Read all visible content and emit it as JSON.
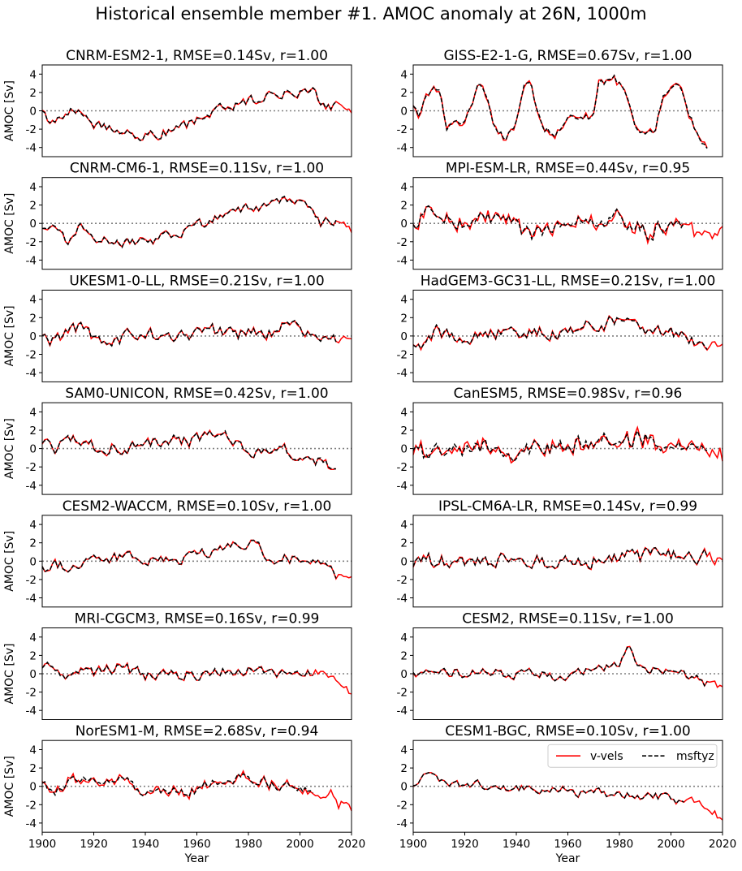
{
  "figure": {
    "title": "Historical ensemble member #1. AMOC anomaly at 26N, 1000m"
  },
  "legend": {
    "entries": [
      {
        "label": "v-vels",
        "color": "#ff0000",
        "dash": "solid"
      },
      {
        "label": "msftyz",
        "color": "#000000",
        "dash": "dashed"
      }
    ],
    "placement": "top-right of last panel"
  },
  "chart_data": {
    "type": "line",
    "layout": {
      "rows": 7,
      "cols": 2
    },
    "shared": {
      "xlim": [
        1900,
        2020
      ],
      "ylim": [
        -5,
        5
      ],
      "xticks": [
        1900,
        1920,
        1940,
        1960,
        1980,
        2000,
        2020
      ],
      "yticks": [
        -4,
        -2,
        0,
        2,
        4
      ],
      "xlabel": "Year",
      "ylabel": "AMOC [Sv]",
      "zero_line": {
        "y": 0,
        "style": "dotted",
        "color": "#808080"
      }
    },
    "panels": [
      {
        "title": "CNRM-ESM2-1, RMSE=0.14Sv,   r=1.00",
        "x_end": 2014,
        "red_extra": 6,
        "noise": 0.55,
        "diverge": 0.12,
        "anchors": [
          [
            1900,
            -0.3
          ],
          [
            1905,
            -1.4
          ],
          [
            1912,
            0.3
          ],
          [
            1920,
            -1.3
          ],
          [
            1930,
            -2.2
          ],
          [
            1940,
            -2.7
          ],
          [
            1950,
            -2.3
          ],
          [
            1960,
            -1.2
          ],
          [
            1970,
            0.4
          ],
          [
            1980,
            1.0
          ],
          [
            1990,
            1.8
          ],
          [
            2000,
            2.0
          ],
          [
            2005,
            2.2
          ],
          [
            2010,
            0.6
          ],
          [
            2014,
            0.6
          ],
          [
            2020,
            0.2
          ]
        ]
      },
      {
        "title": "GISS-E2-1-G, RMSE=0.67Sv,   r=1.00",
        "x_end": 2014,
        "red_extra": 0,
        "noise": 0.45,
        "diverge": 0.25,
        "anchors": [
          [
            1900,
            0.2
          ],
          [
            1902,
            -0.8
          ],
          [
            1905,
            1.8
          ],
          [
            1910,
            2.4
          ],
          [
            1913,
            -1.8
          ],
          [
            1920,
            -1.6
          ],
          [
            1925,
            2.8
          ],
          [
            1928,
            2.0
          ],
          [
            1932,
            -2.2
          ],
          [
            1936,
            -3.0
          ],
          [
            1940,
            -1.0
          ],
          [
            1943,
            3.0
          ],
          [
            1946,
            2.5
          ],
          [
            1950,
            -2.0
          ],
          [
            1955,
            -2.4
          ],
          [
            1960,
            -1.0
          ],
          [
            1965,
            -0.5
          ],
          [
            1970,
            -0.6
          ],
          [
            1972,
            3.0
          ],
          [
            1978,
            3.5
          ],
          [
            1982,
            2.4
          ],
          [
            1986,
            -2.0
          ],
          [
            1990,
            -2.2
          ],
          [
            1994,
            -2.0
          ],
          [
            1997,
            2.0
          ],
          [
            2003,
            2.6
          ],
          [
            2007,
            -0.3
          ],
          [
            2011,
            -3.0
          ],
          [
            2014,
            -4.3
          ]
        ]
      },
      {
        "title": "CNRM-CM6-1, RMSE=0.11Sv,   r=1.00",
        "x_end": 2014,
        "red_extra": 6,
        "noise": 0.55,
        "diverge": 0.1,
        "anchors": [
          [
            1900,
            -0.3
          ],
          [
            1905,
            -0.8
          ],
          [
            1910,
            -2.2
          ],
          [
            1914,
            -0.4
          ],
          [
            1920,
            -1.4
          ],
          [
            1930,
            -2.3
          ],
          [
            1940,
            -1.9
          ],
          [
            1950,
            -1.2
          ],
          [
            1960,
            -0.3
          ],
          [
            1970,
            0.6
          ],
          [
            1980,
            1.6
          ],
          [
            1990,
            2.3
          ],
          [
            2000,
            2.8
          ],
          [
            2005,
            2.0
          ],
          [
            2008,
            0.3
          ],
          [
            2014,
            0.0
          ],
          [
            2020,
            -0.7
          ]
        ]
      },
      {
        "title": "MPI-ESM-LR, RMSE=0.44Sv,   r=0.95",
        "x_end": 2005,
        "red_extra": 15,
        "noise": 0.9,
        "diverge": 0.45,
        "anchors": [
          [
            1900,
            0.0
          ],
          [
            1905,
            1.2
          ],
          [
            1910,
            1.5
          ],
          [
            1915,
            0.0
          ],
          [
            1920,
            -0.2
          ],
          [
            1930,
            0.3
          ],
          [
            1940,
            -0.4
          ],
          [
            1945,
            -1.0
          ],
          [
            1950,
            -1.4
          ],
          [
            1960,
            1.0
          ],
          [
            1965,
            0.2
          ],
          [
            1970,
            -0.4
          ],
          [
            1980,
            0.6
          ],
          [
            1985,
            -0.3
          ],
          [
            1990,
            -0.9
          ],
          [
            2000,
            -0.4
          ],
          [
            2005,
            -0.5
          ],
          [
            2010,
            -0.8
          ],
          [
            2020,
            -0.9
          ]
        ]
      },
      {
        "title": "UKESM1-0-LL, RMSE=0.21Sv,   r=1.00",
        "x_end": 2014,
        "red_extra": 6,
        "noise": 0.75,
        "diverge": 0.15,
        "anchors": [
          [
            1900,
            0.2
          ],
          [
            1905,
            -0.4
          ],
          [
            1910,
            1.0
          ],
          [
            1915,
            0.8
          ],
          [
            1920,
            0.0
          ],
          [
            1930,
            -0.3
          ],
          [
            1940,
            0.2
          ],
          [
            1950,
            -0.4
          ],
          [
            1960,
            0.3
          ],
          [
            1965,
            1.0
          ],
          [
            1970,
            0.2
          ],
          [
            1980,
            0.1
          ],
          [
            1985,
            0.3
          ],
          [
            1990,
            0.8
          ],
          [
            1995,
            1.5
          ],
          [
            2000,
            1.0
          ],
          [
            2005,
            0.0
          ],
          [
            2014,
            -0.6
          ],
          [
            2020,
            0.0
          ]
        ]
      },
      {
        "title": "HadGEM3-GC31-LL, RMSE=0.21Sv,   r=1.00",
        "x_end": 2014,
        "red_extra": 6,
        "noise": 0.75,
        "diverge": 0.15,
        "anchors": [
          [
            1900,
            -1.6
          ],
          [
            1905,
            -0.8
          ],
          [
            1910,
            0.6
          ],
          [
            1915,
            0.0
          ],
          [
            1920,
            -0.2
          ],
          [
            1930,
            0.2
          ],
          [
            1940,
            0.1
          ],
          [
            1950,
            0.4
          ],
          [
            1960,
            0.3
          ],
          [
            1970,
            1.2
          ],
          [
            1980,
            1.6
          ],
          [
            1985,
            1.0
          ],
          [
            1990,
            0.4
          ],
          [
            2000,
            0.3
          ],
          [
            2005,
            -0.2
          ],
          [
            2010,
            -0.7
          ],
          [
            2014,
            -0.9
          ],
          [
            2020,
            -1.3
          ]
        ]
      },
      {
        "title": "SAM0-UNICON, RMSE=0.42Sv,   r=1.00",
        "x_end": 2014,
        "red_extra": 0,
        "noise": 0.75,
        "diverge": 0.15,
        "anchors": [
          [
            1900,
            0.2
          ],
          [
            1905,
            -0.3
          ],
          [
            1910,
            1.0
          ],
          [
            1915,
            0.3
          ],
          [
            1920,
            0.0
          ],
          [
            1930,
            0.1
          ],
          [
            1940,
            0.6
          ],
          [
            1950,
            0.9
          ],
          [
            1960,
            1.0
          ],
          [
            1970,
            1.5
          ],
          [
            1975,
            1.0
          ],
          [
            1980,
            0.1
          ],
          [
            1985,
            -0.3
          ],
          [
            1990,
            0.3
          ],
          [
            1995,
            -0.3
          ],
          [
            2000,
            -0.8
          ],
          [
            2005,
            -1.1
          ],
          [
            2010,
            -1.3
          ],
          [
            2014,
            -1.4
          ]
        ]
      },
      {
        "title": "CanESM5, RMSE=0.98Sv,   r=0.96",
        "x_end": 2014,
        "red_extra": 6,
        "noise": 0.9,
        "diverge": 0.5,
        "anchors": [
          [
            1900,
            0.0
          ],
          [
            1905,
            -0.9
          ],
          [
            1910,
            -0.3
          ],
          [
            1920,
            -0.2
          ],
          [
            1930,
            0.2
          ],
          [
            1940,
            -0.4
          ],
          [
            1950,
            0.0
          ],
          [
            1960,
            0.4
          ],
          [
            1970,
            0.8
          ],
          [
            1975,
            1.0
          ],
          [
            1980,
            1.4
          ],
          [
            1985,
            0.9
          ],
          [
            1990,
            1.3
          ],
          [
            1995,
            0.6
          ],
          [
            2000,
            0.2
          ],
          [
            2005,
            -0.2
          ],
          [
            2010,
            -0.3
          ],
          [
            2014,
            -0.2
          ],
          [
            2020,
            -0.5
          ]
        ]
      },
      {
        "title": "CESM2-WACCM, RMSE=0.10Sv,   r=1.00",
        "x_end": 2014,
        "red_extra": 6,
        "noise": 0.6,
        "diverge": 0.1,
        "anchors": [
          [
            1900,
            -1.0
          ],
          [
            1905,
            -0.5
          ],
          [
            1910,
            -0.6
          ],
          [
            1920,
            0.1
          ],
          [
            1930,
            0.4
          ],
          [
            1940,
            0.2
          ],
          [
            1950,
            0.0
          ],
          [
            1960,
            0.6
          ],
          [
            1970,
            1.3
          ],
          [
            1975,
            2.3
          ],
          [
            1980,
            2.0
          ],
          [
            1985,
            1.2
          ],
          [
            1990,
            -0.3
          ],
          [
            1995,
            0.6
          ],
          [
            2000,
            0.1
          ],
          [
            2005,
            0.0
          ],
          [
            2010,
            -0.2
          ],
          [
            2014,
            -1.5
          ],
          [
            2020,
            -1.5
          ]
        ]
      },
      {
        "title": "IPSL-CM6A-LR, RMSE=0.14Sv,   r=0.99",
        "x_end": 2014,
        "red_extra": 6,
        "noise": 0.85,
        "diverge": 0.12,
        "anchors": [
          [
            1900,
            0.0
          ],
          [
            1910,
            0.2
          ],
          [
            1920,
            -0.5
          ],
          [
            1930,
            0.2
          ],
          [
            1940,
            -0.3
          ],
          [
            1950,
            -0.1
          ],
          [
            1960,
            0.0
          ],
          [
            1970,
            0.1
          ],
          [
            1980,
            0.4
          ],
          [
            1990,
            0.6
          ],
          [
            2000,
            0.8
          ],
          [
            2005,
            1.0
          ],
          [
            2010,
            0.6
          ],
          [
            2014,
            0.4
          ],
          [
            2020,
            0.0
          ]
        ]
      },
      {
        "title": "MRI-CGCM3, RMSE=0.16Sv,   r=0.99",
        "x_end": 2005,
        "red_extra": 15,
        "noise": 0.6,
        "diverge": 0.14,
        "anchors": [
          [
            1900,
            1.0
          ],
          [
            1905,
            0.8
          ],
          [
            1910,
            -0.2
          ],
          [
            1920,
            0.2
          ],
          [
            1930,
            0.5
          ],
          [
            1940,
            -0.1
          ],
          [
            1950,
            0.0
          ],
          [
            1960,
            -0.3
          ],
          [
            1970,
            0.4
          ],
          [
            1980,
            0.4
          ],
          [
            1990,
            0.0
          ],
          [
            2000,
            0.2
          ],
          [
            2005,
            0.0
          ],
          [
            2010,
            -0.5
          ],
          [
            2015,
            -0.6
          ],
          [
            2020,
            -2.0
          ]
        ]
      },
      {
        "title": "CESM2, RMSE=0.11Sv,   r=1.00",
        "x_end": 2014,
        "red_extra": 6,
        "noise": 0.55,
        "diverge": 0.1,
        "anchors": [
          [
            1900,
            0.3
          ],
          [
            1905,
            0.0
          ],
          [
            1910,
            -0.1
          ],
          [
            1920,
            0.2
          ],
          [
            1930,
            0.5
          ],
          [
            1940,
            -0.1
          ],
          [
            1950,
            0.0
          ],
          [
            1960,
            -0.3
          ],
          [
            1970,
            0.4
          ],
          [
            1980,
            1.3
          ],
          [
            1984,
            2.6
          ],
          [
            1988,
            1.0
          ],
          [
            1995,
            0.3
          ],
          [
            2000,
            0.1
          ],
          [
            2005,
            -0.2
          ],
          [
            2010,
            -0.4
          ],
          [
            2014,
            -1.0
          ],
          [
            2020,
            -1.8
          ]
        ]
      },
      {
        "title": "NorESM1-M, RMSE=2.68Sv,   r=0.94",
        "x_end": 2005,
        "red_extra": 15,
        "noise": 0.55,
        "diverge": 0.35,
        "anchors": [
          [
            1900,
            0.2
          ],
          [
            1905,
            -0.5
          ],
          [
            1910,
            0.6
          ],
          [
            1915,
            1.0
          ],
          [
            1920,
            0.4
          ],
          [
            1930,
            1.0
          ],
          [
            1940,
            -1.0
          ],
          [
            1945,
            -0.8
          ],
          [
            1950,
            -0.4
          ],
          [
            1960,
            -0.5
          ],
          [
            1965,
            0.4
          ],
          [
            1970,
            0.6
          ],
          [
            1980,
            1.1
          ],
          [
            1985,
            0.7
          ],
          [
            1990,
            0.1
          ],
          [
            2000,
            -0.2
          ],
          [
            2005,
            -0.8
          ],
          [
            2010,
            -1.2
          ],
          [
            2015,
            -1.7
          ],
          [
            2020,
            -2.0
          ]
        ]
      },
      {
        "title": "CESM1-BGC, RMSE=0.10Sv,   r=1.00",
        "x_end": 2005,
        "red_extra": 15,
        "noise": 0.5,
        "diverge": 0.08,
        "anchors": [
          [
            1900,
            0.5
          ],
          [
            1905,
            1.3
          ],
          [
            1910,
            0.8
          ],
          [
            1920,
            0.0
          ],
          [
            1930,
            0.2
          ],
          [
            1940,
            -0.3
          ],
          [
            1950,
            -0.2
          ],
          [
            1960,
            -0.5
          ],
          [
            1970,
            -0.8
          ],
          [
            1980,
            -0.7
          ],
          [
            1990,
            -1.0
          ],
          [
            2000,
            -1.2
          ],
          [
            2005,
            -1.6
          ],
          [
            2010,
            -1.8
          ],
          [
            2015,
            -2.4
          ],
          [
            2020,
            -3.6
          ]
        ]
      }
    ]
  }
}
